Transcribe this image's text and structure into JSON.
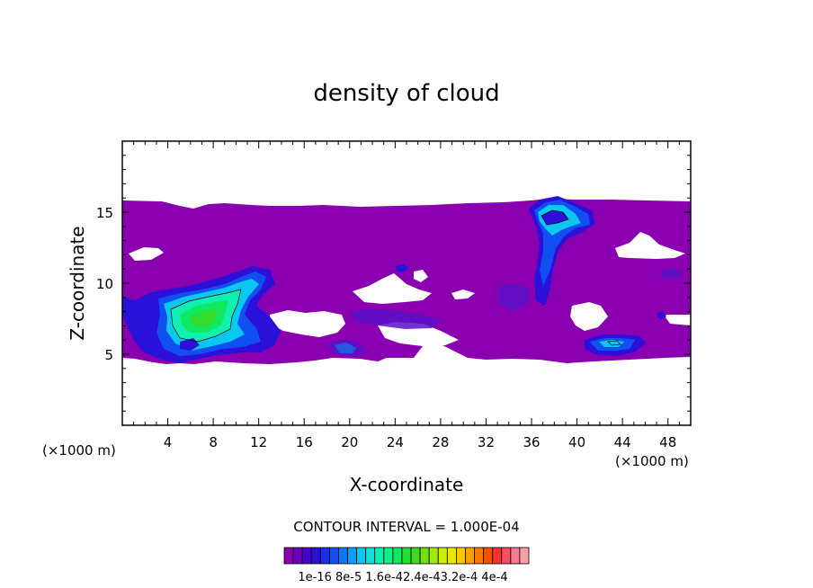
{
  "chart_data": {
    "type": "heatmap",
    "title": "density of cloud",
    "xlabel": "X-coordinate",
    "ylabel": "Z-coordinate",
    "x_unit_left": "(×1000 m)",
    "x_unit_right": "(×1000 m)",
    "xlim": [
      0,
      50
    ],
    "ylim": [
      0,
      20
    ],
    "x_ticks": [
      4,
      8,
      12,
      16,
      20,
      24,
      28,
      32,
      36,
      40,
      44,
      48
    ],
    "x_tick_labels": [
      "4",
      "8",
      "12",
      "16",
      "20",
      "24",
      "28",
      "32",
      "36",
      "40",
      "44",
      "48"
    ],
    "y_ticks": [
      5,
      10,
      15
    ],
    "y_tick_labels": [
      "5",
      "10",
      "15"
    ],
    "contour_interval_text": "CONTOUR INTERVAL = 1.000E-04",
    "colorbar": {
      "colors": [
        "#8a00b0",
        "#6a00c0",
        "#4a00cc",
        "#2a10d8",
        "#1a30e8",
        "#1050f0",
        "#0a78f5",
        "#0aa0f8",
        "#0ac8f0",
        "#10e0d8",
        "#10f0b0",
        "#10f088",
        "#10e860",
        "#20e030",
        "#40d820",
        "#70e010",
        "#a0e810",
        "#c8f000",
        "#e8e800",
        "#f8c800",
        "#f8a000",
        "#f87800",
        "#f85000",
        "#f83030",
        "#f85060",
        "#f87890",
        "#f8a0a8"
      ],
      "labels": [
        "1e-16",
        "8e-5",
        "1.6e-4",
        "2.4e-4",
        "3.2e-4",
        "4e-4"
      ],
      "label_text": "1e-16 8e-5 1.6e-42.4e-43.2e-4 4e-4"
    },
    "regions": [
      {
        "name": "background-cloud-layer",
        "level": "1e-16",
        "x": [
          0,
          50
        ],
        "y": [
          4.5,
          15.7
        ]
      },
      {
        "name": "left-convective-cell",
        "level": "peak ~1.6e-4",
        "x": [
          3.5,
          13
        ],
        "y": [
          5,
          11
        ]
      },
      {
        "name": "upper-anvil-cell",
        "level": "~8e-5",
        "x": [
          35.5,
          41.5
        ],
        "y": [
          8,
          16
        ]
      },
      {
        "name": "lower-right-cell",
        "level": "~8e-5",
        "x": [
          40,
          45
        ],
        "y": [
          5,
          6.2
        ]
      },
      {
        "name": "mid-layer-band",
        "level": "low",
        "x": [
          18,
          30
        ],
        "y": [
          6,
          8.5
        ]
      }
    ],
    "grid": false
  }
}
